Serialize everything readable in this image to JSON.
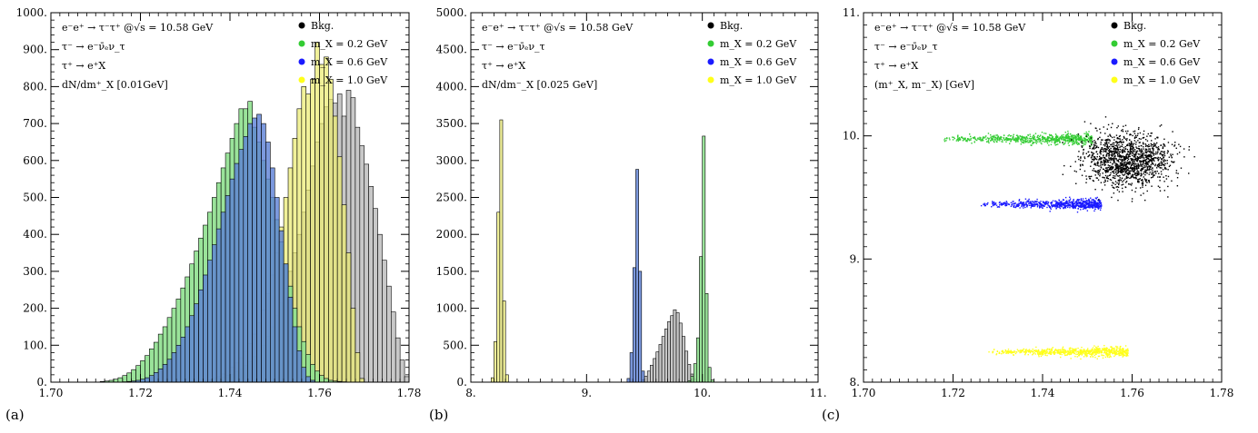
{
  "colors": {
    "bkg": "#000000",
    "m02": "#33cc33",
    "m06": "#1a1aff",
    "m10": "#ffff1a",
    "bkg_hist": "#c8c8c8",
    "m02_hist": "#8fe08f",
    "m06_hist": "#5b7fd6",
    "m10_hist": "#ebeb6e"
  },
  "chart_data": [
    {
      "type": "bar",
      "panel_label": "(a)",
      "title_lines": [
        "e⁻e⁺ → τ⁻τ⁺  @√s = 10.58 GeV",
        "τ⁻ → e⁻ν̄ₑν_τ",
        "τ⁺ → e⁺X",
        "dN/dm⁺_X [0.01GeV]"
      ],
      "xlim": [
        1.7,
        1.78
      ],
      "ylim": [
        0,
        1000
      ],
      "x_ticks": [
        "1.70",
        "1.72",
        "1.74",
        "1.76",
        "1.78"
      ],
      "y_ticks": [
        "0.",
        "100.",
        "200.",
        "300.",
        "400.",
        "500.",
        "600.",
        "700.",
        "800.",
        "900.",
        "1000."
      ],
      "legend": [
        "Bkg.",
        "m_X = 0.2 GeV",
        "m_X = 0.6 GeV",
        "m_X = 1.0 GeV"
      ],
      "series": [
        {
          "name": "Bkg.",
          "start": 1.733,
          "width": 0.001,
          "values": [
            2,
            3,
            5,
            8,
            10,
            14,
            18,
            22,
            28,
            36,
            45,
            55,
            70,
            85,
            100,
            125,
            150,
            180,
            215,
            255,
            300,
            350,
            400,
            460,
            520,
            585,
            650,
            700,
            745,
            765,
            755,
            780,
            720,
            790,
            770,
            690,
            640,
            590,
            530,
            470,
            400,
            330,
            260,
            190,
            120,
            60,
            15
          ]
        },
        {
          "name": "m_X = 1.0 GeV",
          "start": 1.734,
          "width": 0.001,
          "values": [
            3,
            6,
            10,
            15,
            22,
            30,
            40,
            52,
            66,
            84,
            105,
            130,
            160,
            195,
            240,
            290,
            350,
            420,
            500,
            580,
            660,
            740,
            800,
            780,
            820,
            920,
            860,
            880,
            820,
            720,
            610,
            480,
            350,
            200,
            80,
            10
          ]
        },
        {
          "name": "m_X = 0.2 GeV",
          "start": 1.711,
          "width": 0.001,
          "values": [
            2,
            3,
            5,
            8,
            12,
            18,
            25,
            34,
            45,
            58,
            72,
            90,
            108,
            130,
            150,
            175,
            200,
            225,
            255,
            285,
            320,
            355,
            390,
            425,
            460,
            500,
            540,
            580,
            620,
            660,
            700,
            740,
            740,
            760,
            690,
            650,
            600,
            550,
            500,
            440,
            380,
            320,
            260,
            200,
            150,
            110,
            75,
            48,
            30,
            18,
            10,
            5,
            3,
            2,
            1
          ]
        },
        {
          "name": "m_X = 0.6 GeV",
          "start": 1.716,
          "width": 0.001,
          "values": [
            1,
            2,
            3,
            5,
            8,
            12,
            18,
            26,
            36,
            48,
            62,
            80,
            100,
            122,
            150,
            180,
            212,
            250,
            290,
            330,
            372,
            415,
            460,
            505,
            550,
            592,
            630,
            665,
            700,
            715,
            725,
            700,
            650,
            580,
            500,
            410,
            320,
            230,
            150,
            85,
            40,
            15,
            5
          ]
        }
      ]
    },
    {
      "type": "bar",
      "panel_label": "(b)",
      "title_lines": [
        "e⁻e⁺ → τ⁻τ⁺  @√s = 10.58 GeV",
        "τ⁻ → e⁻ν̄ₑν_τ",
        "τ⁺ → e⁺X",
        "dN/dm⁻_X [0.025 GeV]"
      ],
      "xlim": [
        8.0,
        11.0
      ],
      "ylim": [
        0,
        5000
      ],
      "x_ticks": [
        "8.",
        "9.",
        "10.",
        "11."
      ],
      "y_ticks": [
        "0.",
        "500.",
        "1000.",
        "1500.",
        "2000.",
        "2500.",
        "3000.",
        "3500.",
        "4000.",
        "4500.",
        "5000."
      ],
      "legend": [
        "Bkg.",
        "m_X = 0.2 GeV",
        "m_X = 0.6 GeV",
        "m_X = 1.0 GeV"
      ],
      "series": [
        {
          "name": "Bkg.",
          "start": 9.475,
          "width": 0.025,
          "values": [
            30,
            80,
            150,
            230,
            320,
            410,
            510,
            620,
            720,
            820,
            900,
            980,
            940,
            800,
            620,
            420,
            240,
            110,
            40,
            10
          ]
        },
        {
          "name": "m_X = 0.2 GeV",
          "start": 9.875,
          "width": 0.025,
          "values": [
            20,
            80,
            250,
            600,
            1700,
            3330,
            1200,
            200,
            30
          ]
        },
        {
          "name": "m_X = 0.6 GeV",
          "start": 9.35,
          "width": 0.025,
          "values": [
            50,
            400,
            1550,
            2880,
            1500,
            150
          ]
        },
        {
          "name": "m_X = 1.0 GeV",
          "start": 8.175,
          "width": 0.025,
          "values": [
            60,
            550,
            2300,
            3550,
            1100,
            100
          ]
        }
      ]
    },
    {
      "type": "scatter",
      "panel_label": "(c)",
      "title_lines": [
        "e⁻e⁺ → τ⁻τ⁺  @√s = 10.58 GeV",
        "τ⁻ → e⁻ν̄ₑν_τ",
        "τ⁺ → e⁺X",
        "(m⁺_X, m⁻_X) [GeV]"
      ],
      "xlim": [
        1.7,
        1.78
      ],
      "ylim": [
        8.0,
        11.0
      ],
      "x_ticks": [
        "1.70",
        "1.72",
        "1.74",
        "1.76",
        "1.78"
      ],
      "y_ticks": [
        "8.",
        "9.",
        "10.",
        "11."
      ],
      "legend": [
        "Bkg.",
        "m_X = 0.2 GeV",
        "m_X = 0.6 GeV",
        "m_X = 1.0 GeV"
      ],
      "clusters": [
        {
          "name": "m_X = 0.2 GeV",
          "x_range": [
            1.716,
            1.751
          ],
          "y_center": 9.98,
          "y_spread": 0.05
        },
        {
          "name": "m_X = 0.6 GeV",
          "x_range": [
            1.726,
            1.753
          ],
          "y_center": 9.45,
          "y_spread": 0.045
        },
        {
          "name": "m_X = 1.0 GeV",
          "x_range": [
            1.727,
            1.759
          ],
          "y_center": 8.25,
          "y_spread": 0.045
        },
        {
          "name": "Bkg.",
          "x_center": 1.759,
          "x_spread": 0.009,
          "y_center": 9.8,
          "y_spread": 0.18
        }
      ]
    }
  ]
}
